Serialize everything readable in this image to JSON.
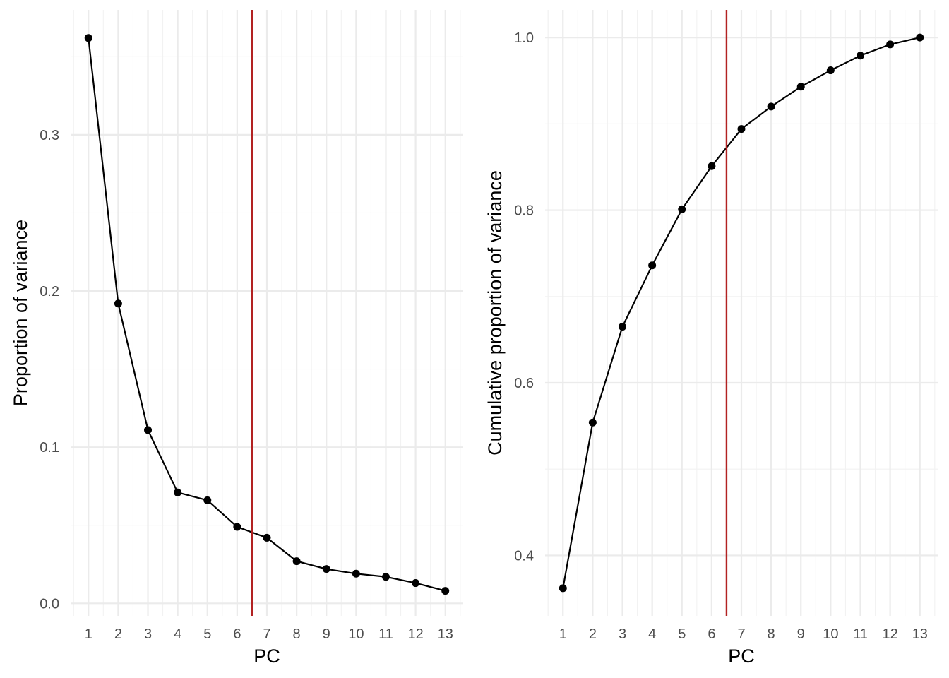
{
  "chart_data": [
    {
      "type": "line",
      "xlabel": "PC",
      "ylabel": "Proportion of variance",
      "x": [
        1,
        2,
        3,
        4,
        5,
        6,
        7,
        8,
        9,
        10,
        11,
        12,
        13
      ],
      "values": [
        0.362,
        0.192,
        0.111,
        0.071,
        0.066,
        0.049,
        0.042,
        0.027,
        0.022,
        0.019,
        0.017,
        0.013,
        0.008
      ],
      "ylim": [
        -0.008,
        0.38
      ],
      "y_ticks": [
        0.0,
        0.1,
        0.2,
        0.3
      ],
      "y_tick_labels": [
        "0.0",
        "0.1",
        "0.2",
        "0.3"
      ],
      "x_ticks": [
        1,
        2,
        3,
        4,
        5,
        6,
        7,
        8,
        9,
        10,
        11,
        12,
        13
      ],
      "x_tick_labels": [
        "1",
        "2",
        "3",
        "4",
        "5",
        "6",
        "7",
        "8",
        "9",
        "10",
        "11",
        "12",
        "13"
      ],
      "xlim": [
        0.4,
        13.6
      ],
      "vline_x": 6.5,
      "vline_color": "#b22222",
      "line_color": "#000000",
      "grid": true
    },
    {
      "type": "line",
      "xlabel": "PC",
      "ylabel": "Cumulative proportion of variance",
      "x": [
        1,
        2,
        3,
        4,
        5,
        6,
        7,
        8,
        9,
        10,
        11,
        12,
        13
      ],
      "values": [
        0.362,
        0.554,
        0.665,
        0.736,
        0.801,
        0.851,
        0.894,
        0.92,
        0.943,
        0.962,
        0.979,
        0.992,
        1.0
      ],
      "ylim": [
        0.33,
        1.032
      ],
      "y_ticks": [
        0.4,
        0.6,
        0.8,
        1.0
      ],
      "y_tick_labels": [
        "0.4",
        "0.6",
        "0.8",
        "1.0"
      ],
      "x_ticks": [
        1,
        2,
        3,
        4,
        5,
        6,
        7,
        8,
        9,
        10,
        11,
        12,
        13
      ],
      "x_tick_labels": [
        "1",
        "2",
        "3",
        "4",
        "5",
        "6",
        "7",
        "8",
        "9",
        "10",
        "11",
        "12",
        "13"
      ],
      "xlim": [
        0.4,
        13.6
      ],
      "vline_x": 6.5,
      "vline_color": "#b22222",
      "line_color": "#000000",
      "grid": true
    }
  ]
}
